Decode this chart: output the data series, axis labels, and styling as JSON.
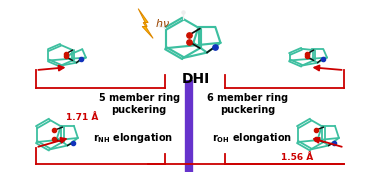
{
  "background_color": "#ffffff",
  "title": "DHI",
  "title_fontsize": 10,
  "title_fontweight": "bold",
  "divider_color": "#6633cc",
  "divider_lw": 6,
  "arrow_color": "#cc0000",
  "arrow_lw": 1.3,
  "label_top_left": "5 member ring\npuckering",
  "label_top_right": "6 member ring\npuckering",
  "label_bot_left": "r$_\\mathregular{NH}$ elongation",
  "label_bot_right": "r$_\\mathregular{OH}$ elongation",
  "label_fontsize": 7.0,
  "ann_left": "1.71 Å",
  "ann_right": "1.56 Å",
  "ann_fontsize": 6.5,
  "teal": "#3dbfa0",
  "dark": "#111111",
  "red": "#cc1100",
  "blue": "#1133bb",
  "white": "#eeeeee",
  "gray": "#555555"
}
